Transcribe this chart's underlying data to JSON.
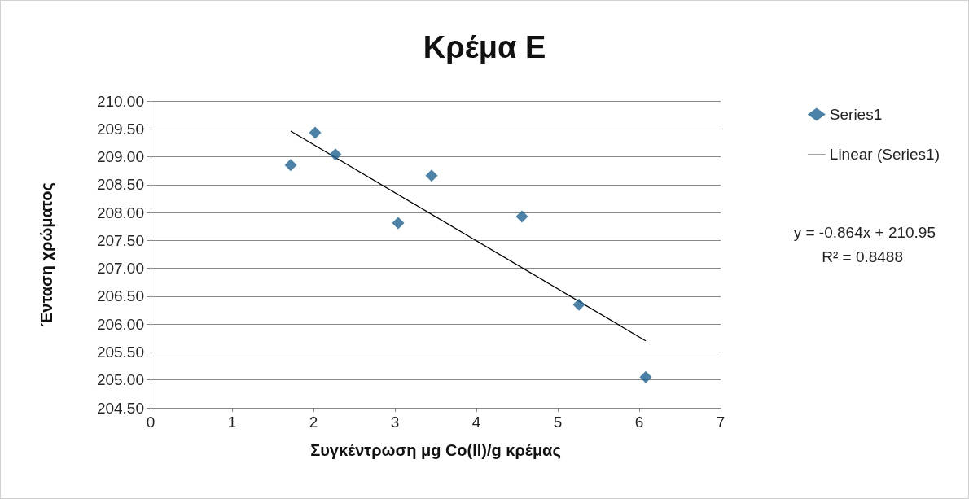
{
  "chart_data": {
    "type": "scatter",
    "title": "Κρέμα E",
    "xlabel": "Συγκέντρωση μg Co(II)/g κρέμας",
    "ylabel": "Ένταση χρώματος",
    "xlim": [
      0,
      7
    ],
    "xticks": [
      0,
      1,
      2,
      3,
      4,
      5,
      6,
      7
    ],
    "ylim": [
      204.5,
      210
    ],
    "yticks": [
      {
        "value": 204.5,
        "label": "204.50"
      },
      {
        "value": 205,
        "label": "205.00"
      },
      {
        "value": 205.5,
        "label": "205.50"
      },
      {
        "value": 206,
        "label": "206.00"
      },
      {
        "value": 206.5,
        "label": "206.50"
      },
      {
        "value": 207,
        "label": "207.00"
      },
      {
        "value": 207.5,
        "label": "207.50"
      },
      {
        "value": 208,
        "label": "208.00"
      },
      {
        "value": 208.5,
        "label": "208.50"
      },
      {
        "value": 209,
        "label": "209.00"
      },
      {
        "value": 209.5,
        "label": "209.50"
      },
      {
        "value": 210,
        "label": "210.00"
      }
    ],
    "grid": "y",
    "legend": "right",
    "marker": "diamond",
    "series": [
      {
        "name": "Series1",
        "type": "scatter",
        "color": "#1f6391",
        "x": [
          1.72,
          2.02,
          2.27,
          3.04,
          3.45,
          4.56,
          5.26,
          6.08
        ],
        "values": [
          208.85,
          209.43,
          209.04,
          207.81,
          208.66,
          207.93,
          206.35,
          205.05
        ]
      },
      {
        "name": "Linear (Series1)",
        "type": "line",
        "color": "#000000",
        "marker": "none",
        "x": [
          1.72,
          6.08
        ],
        "values": [
          209.46,
          205.7
        ]
      }
    ],
    "annotations": [
      "y = -0.864x + 210.95",
      "R² = 0.8488"
    ]
  }
}
